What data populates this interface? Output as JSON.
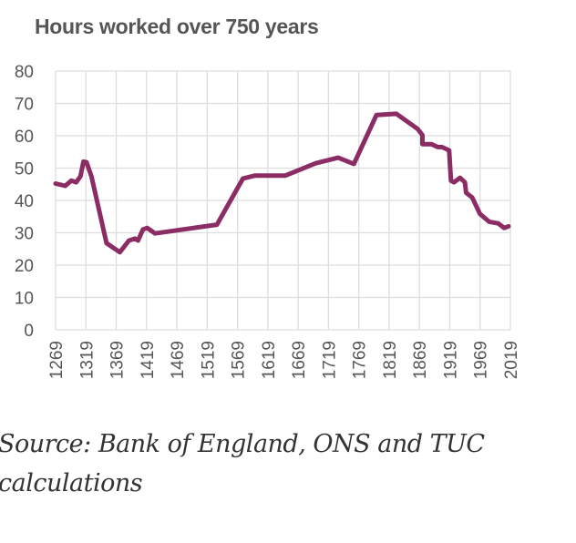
{
  "chart_data": {
    "type": "line",
    "title": "Hours worked over 750 years",
    "xlabel": "",
    "ylabel": "",
    "xlim": [
      1269,
      2019
    ],
    "ylim": [
      0,
      80
    ],
    "grid": true,
    "x_ticks": [
      "1269",
      "1319",
      "1369",
      "1419",
      "1469",
      "1519",
      "1569",
      "1619",
      "1669",
      "1719",
      "1769",
      "1819",
      "1869",
      "1919",
      "1969",
      "2019"
    ],
    "y_ticks": [
      "0",
      "10",
      "20",
      "30",
      "40",
      "50",
      "60",
      "70",
      "80"
    ],
    "line_color": "#8B2D64",
    "series": [
      {
        "name": "Hours worked",
        "x": [
          1269,
          1285,
          1295,
          1303,
          1310,
          1315,
          1320,
          1328,
          1353,
          1360,
          1375,
          1390,
          1400,
          1405,
          1413,
          1420,
          1433,
          1535,
          1578,
          1598,
          1648,
          1698,
          1735,
          1761,
          1798,
          1831,
          1866,
          1874,
          1874,
          1889,
          1899,
          1906,
          1918,
          1921,
          1926,
          1936,
          1944,
          1946,
          1956,
          1969,
          1984,
          1999,
          2009,
          2016
        ],
        "y": [
          45.2,
          44.5,
          46.1,
          45.6,
          47.5,
          52,
          51.8,
          47.5,
          26.8,
          25.9,
          24,
          27.6,
          28.2,
          27.6,
          31,
          31.5,
          29.8,
          32.5,
          46.8,
          47.7,
          47.7,
          51.5,
          53.2,
          51.3,
          66.4,
          66.8,
          62.1,
          60.2,
          57.4,
          57.4,
          56.5,
          56.5,
          55.5,
          46.1,
          45.6,
          47,
          45.6,
          42.4,
          40.9,
          35.8,
          33.4,
          32.9,
          31.5,
          32
        ]
      }
    ]
  },
  "caption": "Source: Bank of England, ONS and TUC calculations"
}
